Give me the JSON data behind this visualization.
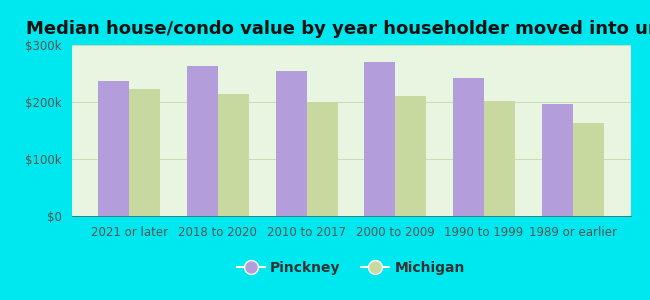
{
  "title": "Median house/condo value by year householder moved into unit",
  "categories": [
    "2021 or later",
    "2018 to 2020",
    "2010 to 2017",
    "2000 to 2009",
    "1990 to 1999",
    "1989 or earlier"
  ],
  "pinckney": [
    237000,
    263000,
    255000,
    270000,
    242000,
    196000
  ],
  "michigan": [
    222000,
    214000,
    200000,
    210000,
    202000,
    163000
  ],
  "pinckney_color": "#b39ddb",
  "michigan_color": "#c8d9a0",
  "background_outer": "#00e8ef",
  "background_inner": "#e8f5e0",
  "ylim": [
    0,
    300000
  ],
  "yticks": [
    0,
    100000,
    200000,
    300000
  ],
  "ytick_labels": [
    "$0",
    "$100k",
    "$200k",
    "$300k"
  ],
  "tick_color": "#555555",
  "grid_color": "#c8ddb0",
  "title_fontsize": 13,
  "tick_fontsize": 8.5,
  "legend_fontsize": 10,
  "bar_width": 0.35
}
